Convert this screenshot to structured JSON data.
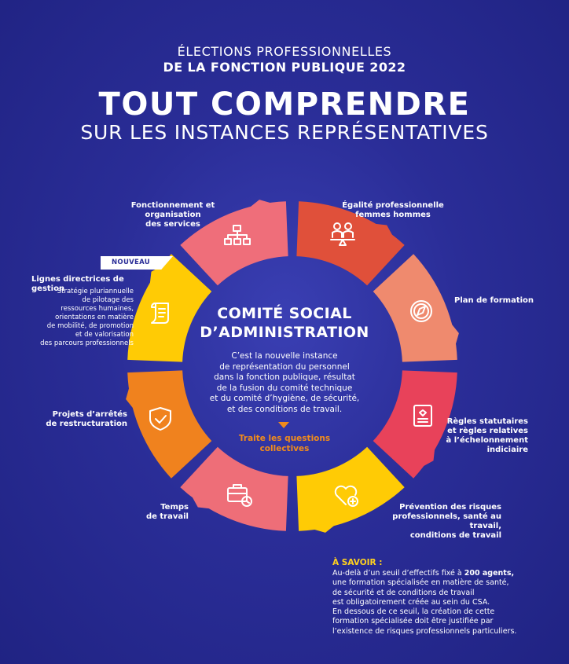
{
  "header": {
    "line1": "ÉLECTIONS PROFESSIONNELLES",
    "line2": "DE LA FONCTION PUBLIQUE 2022",
    "title": "TOUT COMPRENDRE",
    "subtitle": "SUR LES INSTANCES REPRÉSENTATIVES"
  },
  "center": {
    "title_line1": "COMITÉ SOCIAL",
    "title_line2": "D’ADMINISTRATION",
    "desc_lines": [
      "C’est la nouvelle instance",
      "de représentation du personnel",
      "dans la fonction publique, résultat",
      "de la fusion du comité technique",
      "et du comité d’hygiène, de sécurité,",
      "et des conditions de travail."
    ],
    "tag_line1": "Traite les questions",
    "tag_line2": "collectives"
  },
  "badge": "NOUVEAU",
  "segments": [
    {
      "label_lines": [
        "Égalité professionnelle",
        "femmes hommes"
      ],
      "color": "#e0503a",
      "icon": "equality-icon"
    },
    {
      "label_lines": [
        "Plan de formation"
      ],
      "color": "#ef8a6e",
      "icon": "compass-icon"
    },
    {
      "label_lines": [
        "Règles statutaires",
        "et règles relatives",
        "à l’échelonnement",
        "indiciaire"
      ],
      "color": "#e8425a",
      "icon": "certificate-icon"
    },
    {
      "label_lines": [
        "Prévention des risques",
        "professionnels, santé au travail,",
        "conditions de travail"
      ],
      "color": "#ffcb05",
      "icon": "heart-plus-icon"
    },
    {
      "label_lines": [
        "Temps",
        "de travail"
      ],
      "color": "#ee6e78",
      "icon": "briefcase-clock-icon"
    },
    {
      "label_lines": [
        "Projets d’arrêtés",
        "de restructuration"
      ],
      "color": "#f0821e",
      "icon": "shield-check-icon"
    },
    {
      "title": "Lignes directrices de gestion",
      "label_lines": [
        "Stratégie pluriannuelle",
        "de pilotage des",
        "ressources humaines,",
        "orientations en matière",
        "de mobilité, de promotion",
        "et de valorisation",
        "des parcours professionnels"
      ],
      "color": "#ffcb05",
      "icon": "scroll-icon"
    },
    {
      "label_lines": [
        "Fonctionnement et organisation",
        "des services"
      ],
      "color": "#ef6e7a",
      "icon": "org-chart-icon"
    }
  ],
  "a_savoir": {
    "title": "À SAVOIR :",
    "line1_pre": "Au-delà d’un seuil d’effectifs fixé à ",
    "line1_bold": "200 agents,",
    "lines": [
      "une formation spécialisée en matière de santé,",
      "de sécurité et de conditions de travail",
      "est obligatoirement créée au sein du CSA.",
      "En dessous de ce seuil, la création de cette",
      "formation spécialisée doit être justifiée par",
      "l’existence de risques professionnels particuliers."
    ]
  }
}
